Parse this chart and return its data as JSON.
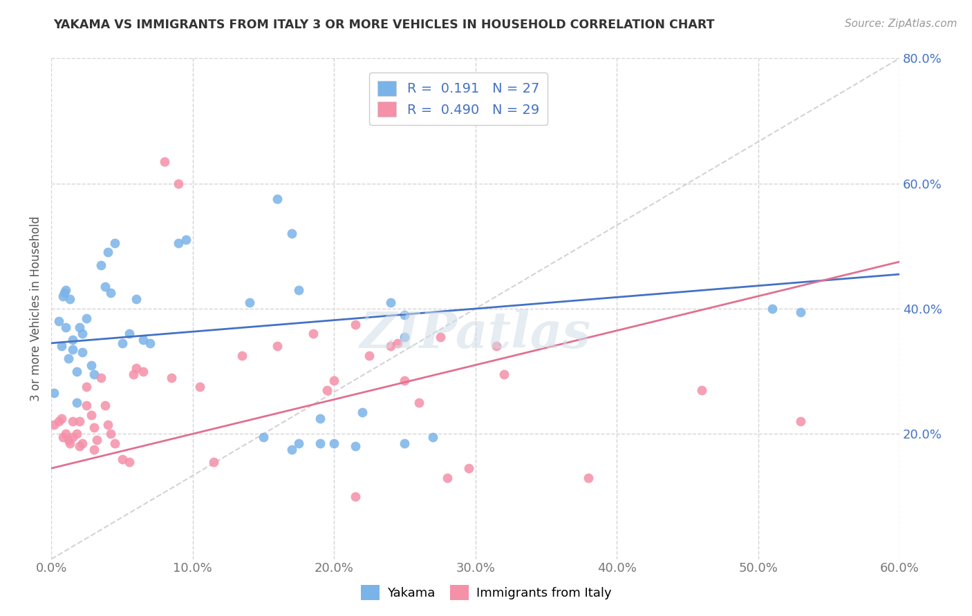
{
  "title": "YAKAMA VS IMMIGRANTS FROM ITALY 3 OR MORE VEHICLES IN HOUSEHOLD CORRELATION CHART",
  "source": "Source: ZipAtlas.com",
  "ylabel": "3 or more Vehicles in Household",
  "xmin": 0.0,
  "xmax": 0.6,
  "ymin": 0.0,
  "ymax": 0.8,
  "xticks": [
    0.0,
    0.1,
    0.2,
    0.3,
    0.4,
    0.5,
    0.6
  ],
  "yticks": [
    0.2,
    0.4,
    0.6,
    0.8
  ],
  "legend_entries": [
    {
      "label": "R =  0.191   N = 27",
      "color": "#aec6f0"
    },
    {
      "label": "R =  0.490   N = 29",
      "color": "#f4b8c8"
    }
  ],
  "legend_bottom": [
    "Yakama",
    "Immigrants from Italy"
  ],
  "yakama_color": "#7ab3e8",
  "italy_color": "#f490a8",
  "trendline_yakama_color": "#4472c4",
  "trendline_italy_color": "#e07090",
  "diagonal_color": "#c8c8c8",
  "yakama_x": [
    0.002,
    0.005,
    0.007,
    0.008,
    0.009,
    0.01,
    0.01,
    0.012,
    0.013,
    0.015,
    0.015,
    0.018,
    0.018,
    0.02,
    0.022,
    0.022,
    0.025,
    0.028,
    0.03,
    0.035,
    0.038,
    0.04,
    0.042,
    0.045,
    0.05,
    0.055
  ],
  "yakama_y": [
    0.265,
    0.38,
    0.34,
    0.42,
    0.425,
    0.43,
    0.37,
    0.32,
    0.415,
    0.35,
    0.335,
    0.3,
    0.25,
    0.37,
    0.36,
    0.33,
    0.385,
    0.31,
    0.295,
    0.47,
    0.435,
    0.49,
    0.425,
    0.505,
    0.345,
    0.36
  ],
  "yakama_x2": [
    0.06,
    0.065,
    0.07,
    0.09,
    0.095,
    0.14,
    0.16,
    0.17,
    0.175,
    0.24,
    0.25,
    0.27,
    0.19,
    0.2,
    0.17,
    0.15,
    0.19,
    0.22,
    0.215,
    0.25,
    0.175,
    0.25,
    0.51,
    0.53
  ],
  "yakama_y2": [
    0.415,
    0.35,
    0.345,
    0.505,
    0.51,
    0.41,
    0.575,
    0.52,
    0.43,
    0.41,
    0.39,
    0.195,
    0.185,
    0.185,
    0.175,
    0.195,
    0.225,
    0.235,
    0.18,
    0.185,
    0.185,
    0.355,
    0.4,
    0.395
  ],
  "italy_x": [
    0.002,
    0.005,
    0.007,
    0.008,
    0.01,
    0.012,
    0.013,
    0.015,
    0.015,
    0.018,
    0.02,
    0.02,
    0.022,
    0.025,
    0.025,
    0.028,
    0.03,
    0.03,
    0.032,
    0.035,
    0.038,
    0.04,
    0.042,
    0.045,
    0.05,
    0.055,
    0.058,
    0.06
  ],
  "italy_y": [
    0.215,
    0.22,
    0.225,
    0.195,
    0.2,
    0.19,
    0.185,
    0.195,
    0.22,
    0.2,
    0.18,
    0.22,
    0.185,
    0.275,
    0.245,
    0.23,
    0.21,
    0.175,
    0.19,
    0.29,
    0.245,
    0.215,
    0.2,
    0.185,
    0.16,
    0.155,
    0.295,
    0.305
  ],
  "italy_x2": [
    0.065,
    0.08,
    0.085,
    0.09,
    0.105,
    0.115,
    0.135,
    0.16,
    0.185,
    0.195,
    0.2,
    0.215,
    0.215,
    0.225,
    0.24,
    0.245,
    0.25,
    0.26,
    0.275,
    0.28,
    0.295,
    0.315,
    0.32,
    0.38,
    0.46,
    0.53
  ],
  "italy_y2": [
    0.3,
    0.635,
    0.29,
    0.6,
    0.275,
    0.155,
    0.325,
    0.34,
    0.36,
    0.27,
    0.285,
    0.1,
    0.375,
    0.325,
    0.34,
    0.345,
    0.285,
    0.25,
    0.355,
    0.13,
    0.145,
    0.34,
    0.295,
    0.13,
    0.27,
    0.22
  ],
  "background_color": "#ffffff",
  "grid_color": "#d4d4d4"
}
